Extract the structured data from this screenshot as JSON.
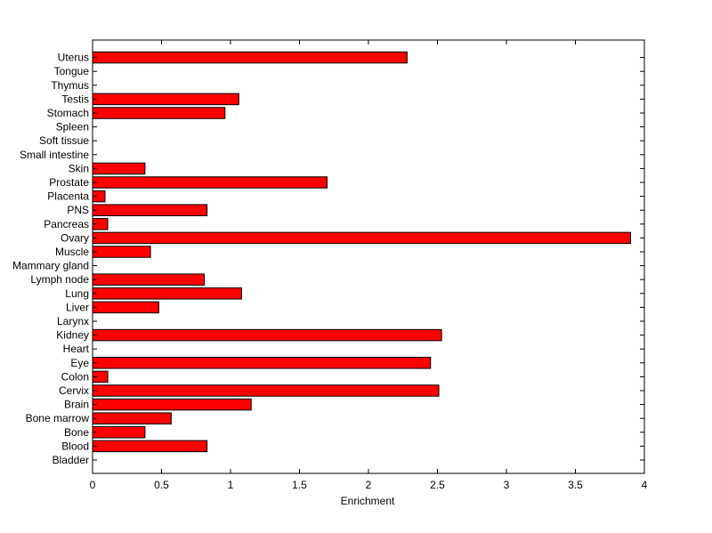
{
  "chart_data": {
    "type": "bar",
    "orientation": "horizontal",
    "xlabel": "Enrichment",
    "ylabel": "",
    "title": "",
    "xlim": [
      0,
      4
    ],
    "xticks": [
      0,
      0.5,
      1,
      1.5,
      2,
      2.5,
      3,
      3.5,
      4
    ],
    "xtick_labels": [
      "0",
      "0.5",
      "1",
      "1.5",
      "2",
      "2.5",
      "3",
      "3.5",
      "4"
    ],
    "grid": false,
    "bar_color": "#ff0000",
    "categories": [
      "Bladder",
      "Blood",
      "Bone",
      "Bone marrow",
      "Brain",
      "Cervix",
      "Colon",
      "Eye",
      "Heart",
      "Kidney",
      "Larynx",
      "Liver",
      "Lung",
      "Lymph node",
      "Mammary gland",
      "Muscle",
      "Ovary",
      "Pancreas",
      "PNS",
      "Placenta",
      "Prostate",
      "Skin",
      "Small intestine",
      "Soft tissue",
      "Spleen",
      "Stomach",
      "Testis",
      "Thymus",
      "Tongue",
      "Uterus"
    ],
    "values": [
      0,
      0.83,
      0.38,
      0.57,
      1.15,
      2.51,
      0.11,
      2.45,
      0,
      2.53,
      0,
      0.48,
      1.08,
      0.81,
      0,
      0.42,
      3.9,
      0.11,
      0.83,
      0.09,
      1.7,
      0.38,
      0,
      0,
      0,
      0.96,
      1.06,
      0,
      0,
      2.28
    ]
  }
}
